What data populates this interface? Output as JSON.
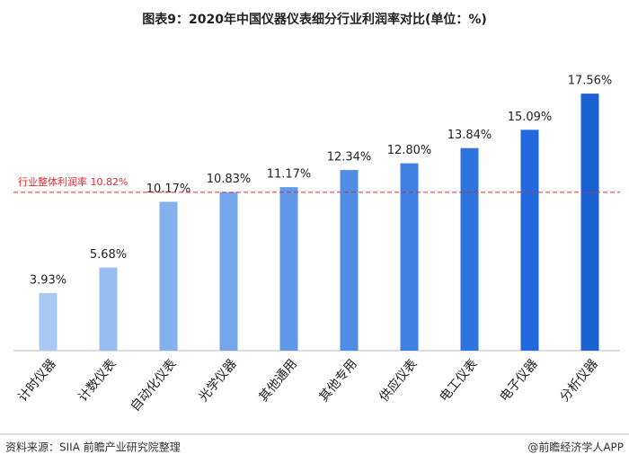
{
  "chart_data": {
    "type": "bar",
    "title": "图表9：2020年中国仪器仪表细分行业利润率对比(单位：%)",
    "categories": [
      "计时仪器",
      "计数仪表",
      "自动化仪表",
      "光学仪器",
      "其他通用",
      "其他专用",
      "供应仪表",
      "电工仪表",
      "电子仪器",
      "分析仪器"
    ],
    "values": [
      3.93,
      5.68,
      10.17,
      10.83,
      11.17,
      12.34,
      12.8,
      13.84,
      15.09,
      17.56
    ],
    "value_labels": [
      "3.93%",
      "5.68%",
      "10.17%",
      "10.83%",
      "11.17%",
      "12.34%",
      "12.80%",
      "13.84%",
      "15.09%",
      "17.56%"
    ],
    "colors": [
      "#a9c9f5",
      "#97bdf2",
      "#84b0ee",
      "#75a6ec",
      "#6199e8",
      "#4f8ce4",
      "#3f80e2",
      "#2d74de",
      "#2169dc",
      "#1a62d4"
    ],
    "ylim": [
      0,
      18
    ],
    "reference_line": {
      "value": 10.82,
      "label": "行业整体利润率 10.82%",
      "color": "#e8262d"
    },
    "source": "资料来源：SIIA 前瞻产业研究院整理",
    "credit": "@前瞻经济学人APP"
  }
}
